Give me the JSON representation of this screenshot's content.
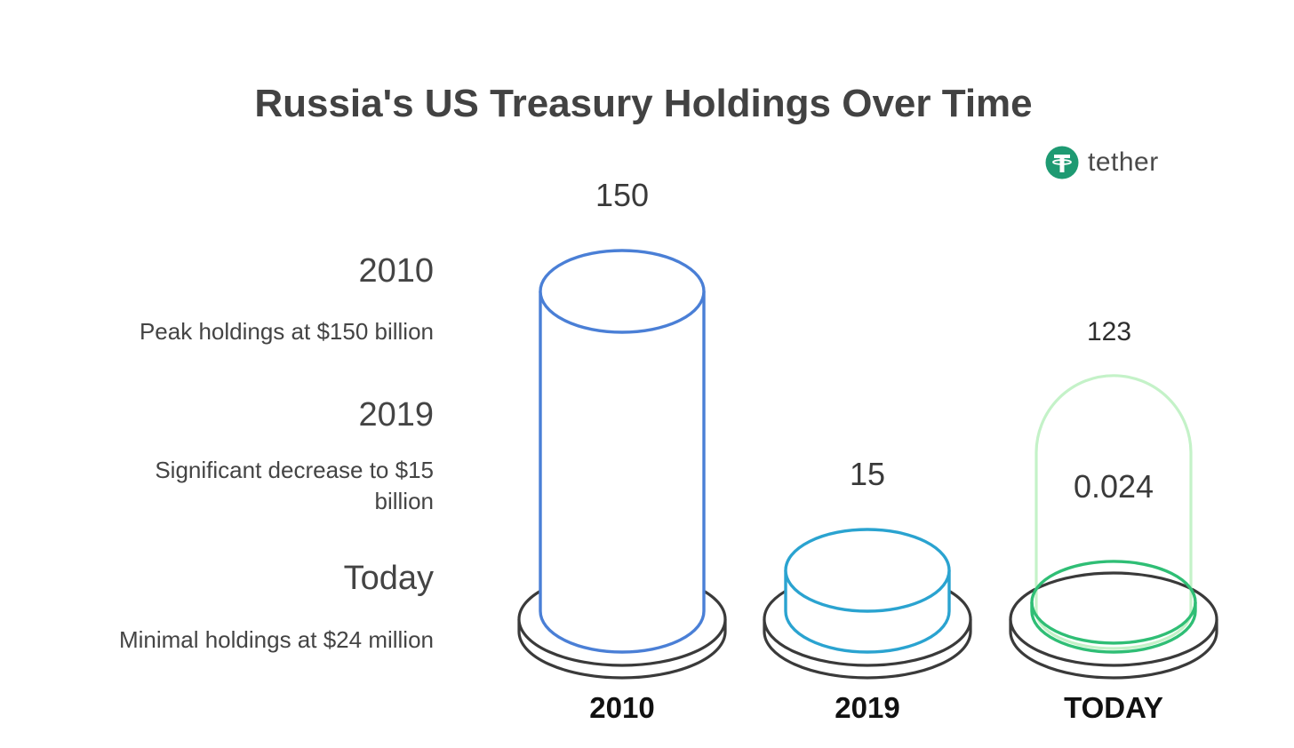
{
  "title": "Russia's US Treasury Holdings Over Time",
  "brand": {
    "name": "tether",
    "icon": "tether-logo-icon",
    "color": "#1e9a72"
  },
  "side_notes": [
    {
      "year": "2010",
      "description": "Peak holdings at $150 billion"
    },
    {
      "year": "2019",
      "description": "Significant decrease to $15 billion"
    },
    {
      "year": "Today",
      "description": "Minimal holdings at $24 million"
    }
  ],
  "chart_data": {
    "type": "bar",
    "style": "3D cylinders on round bases",
    "categories": [
      "2010",
      "2019",
      "TODAY"
    ],
    "values": [
      150,
      15,
      0.024
    ],
    "data_labels": [
      "150",
      "15",
      "0.024"
    ],
    "colors": [
      "#4a7fd6",
      "#2aa3d0",
      "#2fbe75"
    ],
    "overlay": {
      "category": "TODAY",
      "value": 123,
      "label": "123",
      "color": "#c4f2c8"
    }
  }
}
